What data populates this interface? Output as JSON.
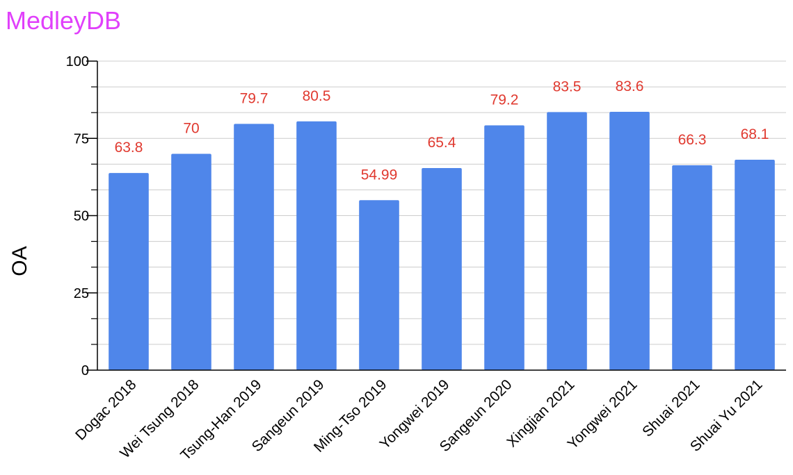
{
  "chart_data": {
    "type": "bar",
    "title": "MedleyDB",
    "xlabel": "",
    "ylabel": "OA",
    "ylim": [
      0,
      100
    ],
    "yticks": [
      0,
      25,
      50,
      75,
      100
    ],
    "grid": true,
    "categories": [
      "Dogac 2018",
      "Wei Tsung 2018",
      "Tsung-Han 2019",
      "Sangeun 2019",
      "Ming-Tso 2019",
      "Yongwei 2019",
      "Sangeun 2020",
      "Xingjian 2021",
      "Yongwei 2021",
      "Shuai 2021",
      "Shuai Yu 2021"
    ],
    "values": [
      63.8,
      70,
      79.7,
      80.5,
      54.99,
      65.4,
      79.2,
      83.5,
      83.6,
      66.3,
      68.1
    ],
    "data_labels": [
      "63.8",
      "70",
      "79.7",
      "80.5",
      "54.99",
      "65.4",
      "79.2",
      "83.5",
      "83.6",
      "66.3",
      "68.1"
    ],
    "colors": {
      "bar": "#4f86ea",
      "data_label": "#e0392f",
      "title": "#e040fb",
      "grid": "#cccccc",
      "axis": "#000000"
    }
  }
}
